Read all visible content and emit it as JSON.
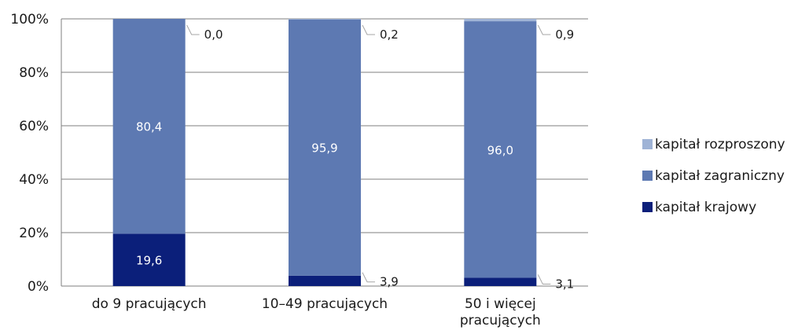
{
  "chart_data": {
    "type": "bar",
    "stacked": true,
    "categories": [
      "do 9 pracujących",
      "10–49 pracujących",
      "50 i więcej pracujących"
    ],
    "category_lines": [
      [
        "do 9 pracujących"
      ],
      [
        "10–49 pracujących"
      ],
      [
        "50 i więcej",
        "pracujących"
      ]
    ],
    "series": [
      {
        "name": "kapitał krajowy",
        "values": [
          19.6,
          3.9,
          3.1
        ],
        "color": "#0b1f7a"
      },
      {
        "name": "kapitał zagraniczny",
        "values": [
          80.4,
          95.9,
          96.0
        ],
        "color": "#5d79b2"
      },
      {
        "name": "kapitał rozproszony",
        "values": [
          0.0,
          0.2,
          0.9
        ],
        "color": "#9fb3d6"
      }
    ],
    "value_labels": [
      [
        "19,6",
        "80,4",
        "0,0"
      ],
      [
        "3,9",
        "95,9",
        "0,2"
      ],
      [
        "3,1",
        "96,0",
        "0,9"
      ]
    ],
    "y_ticks": [
      "0%",
      "20%",
      "40%",
      "60%",
      "80%",
      "100%"
    ],
    "ylim": [
      0,
      100
    ],
    "grid": true,
    "legend_position": "right",
    "legend_order": [
      "kapitał rozproszony",
      "kapitał zagraniczny",
      "kapitał krajowy"
    ],
    "title": "",
    "xlabel": "",
    "ylabel": ""
  }
}
